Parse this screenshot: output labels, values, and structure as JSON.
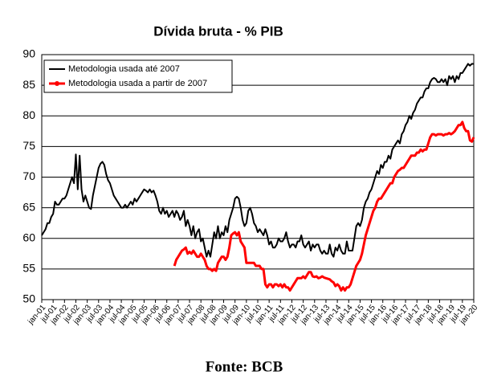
{
  "chart_data": {
    "type": "line",
    "title": "Dívida bruta - % PIB",
    "categories": [
      "jan-01",
      null,
      null,
      null,
      null,
      null,
      "jul-01",
      null,
      null,
      null,
      null,
      null,
      "jan-02",
      null,
      null,
      null,
      null,
      null,
      "jul-02",
      null,
      null,
      null,
      null,
      null,
      "jan-03",
      null,
      null,
      null,
      null,
      null,
      "jul-03",
      null,
      null,
      null,
      null,
      null,
      "jan-04",
      null,
      null,
      null,
      null,
      null,
      "jul-04",
      null,
      null,
      null,
      null,
      null,
      "jan-05",
      null,
      null,
      null,
      null,
      null,
      "jul-05",
      null,
      null,
      null,
      null,
      null,
      "jan-06",
      null,
      null,
      null,
      null,
      null,
      "jul-06",
      null,
      null,
      null,
      null,
      null,
      "jan-07",
      null,
      null,
      null,
      null,
      null,
      "jul-07",
      null,
      null,
      null,
      null,
      null,
      "jan-08",
      null,
      null,
      null,
      null,
      null,
      "jul-08",
      null,
      null,
      null,
      null,
      null,
      "jan-09",
      null,
      null,
      null,
      null,
      null,
      "jul-09",
      null,
      null,
      null,
      null,
      null,
      "jan-10",
      null,
      null,
      null,
      null,
      null,
      "jul-10",
      null,
      null,
      null,
      null,
      null,
      "jan-11",
      null,
      null,
      null,
      null,
      null,
      "jul-11",
      null,
      null,
      null,
      null,
      null,
      "jan-12",
      null,
      null,
      null,
      null,
      null,
      "jul-12",
      null,
      null,
      null,
      null,
      null,
      "jan-13",
      null,
      null,
      null,
      null,
      null,
      "jul-13",
      null,
      null,
      null,
      null,
      null,
      "jan-14",
      null,
      null,
      null,
      null,
      null,
      "jul-14",
      null,
      null,
      null,
      null,
      null,
      "jan-15",
      null,
      null,
      null,
      null,
      null,
      "jul-15",
      null,
      null,
      null,
      null,
      null,
      "jan-16",
      null,
      null,
      null,
      null,
      null,
      "jul-16",
      null,
      null,
      null,
      null,
      null,
      "jan-17",
      null,
      null,
      null,
      null,
      null,
      "jul-17",
      null,
      null,
      null,
      null,
      null,
      "jan-18",
      null,
      null,
      null,
      null,
      null,
      "jul-18",
      null,
      null,
      null,
      null,
      null,
      "jan-19",
      null,
      null,
      null,
      null,
      null,
      "jul-19",
      null,
      null,
      null,
      null,
      null,
      "jan-20"
    ],
    "series": [
      {
        "name": "Metodologia usada até 2007",
        "color": "#000000",
        "values": [
          60.5,
          61,
          61.5,
          62.5,
          62.5,
          63.5,
          64,
          66,
          65.5,
          65.5,
          66,
          66.5,
          66.5,
          67,
          68,
          69,
          70,
          69,
          73.7,
          68,
          73.5,
          68,
          66,
          67,
          66,
          65,
          64.8,
          67,
          68.5,
          70,
          71.5,
          72.2,
          72.5,
          72,
          70.5,
          69.5,
          69,
          68,
          67,
          66.5,
          66,
          65.5,
          65,
          65,
          65.5,
          65,
          65.5,
          66,
          65.5,
          66.5,
          66,
          66.5,
          67,
          67.5,
          68,
          67.8,
          67.5,
          68,
          67.5,
          67.8,
          67,
          66,
          64.5,
          64,
          65,
          64,
          64.5,
          63.5,
          64,
          64.5,
          63.5,
          64.5,
          64,
          63,
          63.5,
          64.5,
          62,
          63,
          62,
          60.5,
          62,
          60,
          61,
          61.5,
          59.5,
          60,
          58.5,
          57,
          58,
          57,
          59,
          61,
          60,
          62,
          60,
          61,
          60.5,
          62,
          61,
          63,
          64,
          65,
          66.5,
          66.8,
          66.5,
          65,
          63,
          62,
          62.5,
          64.5,
          65,
          64,
          62.5,
          62,
          61,
          61.5,
          61,
          60.5,
          61.5,
          60.5,
          59,
          59.5,
          58.5,
          58.5,
          59,
          60,
          59.5,
          59.5,
          60,
          61,
          59.5,
          58.5,
          59,
          59,
          58.5,
          59.5,
          59.5,
          60.5,
          59,
          58.5,
          59,
          59.5,
          58,
          59,
          58.5,
          59,
          59,
          58,
          57.5,
          58,
          57.5,
          57.5,
          59,
          57.5,
          57,
          58.5,
          58,
          59,
          58,
          57.5,
          57.5,
          59.5,
          58,
          58,
          58,
          60,
          62,
          62.5,
          62,
          63,
          65,
          66,
          66.5,
          67.5,
          68,
          69,
          70,
          71,
          70.5,
          72,
          71.5,
          72.5,
          72.5,
          73.5,
          73,
          74.5,
          75,
          75.5,
          76,
          75.5,
          77,
          77.5,
          78.5,
          79,
          80,
          79.5,
          80.5,
          81,
          82,
          82.5,
          83,
          83,
          84,
          84.5,
          84.5,
          85.5,
          86,
          86.2,
          86,
          85.5,
          85.5,
          86,
          85.5,
          86,
          85,
          86.5,
          86,
          86.5,
          85.5,
          86.5,
          86,
          87,
          87,
          87.5,
          88,
          88.5,
          88.2,
          88.5,
          88.5
        ]
      },
      {
        "name": "Metodologia usada a partir de 2007",
        "color": "#ff0000",
        "values": [
          null,
          null,
          null,
          null,
          null,
          null,
          null,
          null,
          null,
          null,
          null,
          null,
          null,
          null,
          null,
          null,
          null,
          null,
          null,
          null,
          null,
          null,
          null,
          null,
          null,
          null,
          null,
          null,
          null,
          null,
          null,
          null,
          null,
          null,
          null,
          null,
          null,
          null,
          null,
          null,
          null,
          null,
          null,
          null,
          null,
          null,
          null,
          null,
          null,
          null,
          null,
          null,
          null,
          null,
          null,
          null,
          null,
          null,
          null,
          null,
          null,
          null,
          null,
          null,
          null,
          null,
          null,
          null,
          null,
          null,
          55.5,
          56.5,
          57,
          57.5,
          58,
          58.2,
          58.5,
          57.5,
          57.8,
          57.5,
          58,
          57.5,
          57,
          57,
          57.5,
          57,
          56.5,
          55.5,
          55,
          55,
          54.7,
          55,
          54.7,
          56,
          56.5,
          57,
          57,
          56.5,
          57,
          58.5,
          60.5,
          60.8,
          61,
          60.5,
          61,
          59.5,
          59,
          58.5,
          56,
          56,
          56,
          56,
          56,
          55.5,
          55.5,
          55.5,
          55,
          55,
          52.5,
          52,
          52.5,
          52.5,
          52,
          52.5,
          52.5,
          52.2,
          52.5,
          52,
          52.5,
          52,
          52,
          51.5,
          52,
          52.5,
          53,
          53.5,
          53.5,
          53.5,
          53.8,
          53.5,
          54,
          54.5,
          54.5,
          53.8,
          53.7,
          53.8,
          53.5,
          53.6,
          53.8,
          53.6,
          53.5,
          53.4,
          53.3,
          53,
          52.8,
          52.2,
          52.5,
          52.2,
          51.5,
          52,
          51.5,
          52,
          52,
          52.5,
          53.5,
          54.5,
          55.5,
          56,
          56.5,
          57.5,
          59,
          60.5,
          61.5,
          62.5,
          63.5,
          64.5,
          65,
          66,
          66.5,
          66.5,
          67,
          67.5,
          68,
          68.5,
          69,
          69,
          70,
          70.5,
          71,
          71.2,
          71.5,
          71.5,
          72,
          72.5,
          73,
          73.5,
          73.5,
          73.5,
          74,
          74,
          74.5,
          74.2,
          74.5,
          74.5,
          75.5,
          76.5,
          77,
          77,
          76.8,
          77,
          77,
          77,
          76.8,
          77,
          77,
          77.2,
          77,
          77.2,
          77.5,
          78,
          78.5,
          78.5,
          79,
          78,
          77.5,
          77.5,
          76,
          75.8,
          76.5
        ]
      }
    ],
    "ylim": [
      50,
      90
    ],
    "yticks": [
      50,
      55,
      60,
      65,
      70,
      75,
      80,
      85,
      90
    ],
    "grid": true,
    "legend": "top-left",
    "source": "Fonte: BCB"
  }
}
